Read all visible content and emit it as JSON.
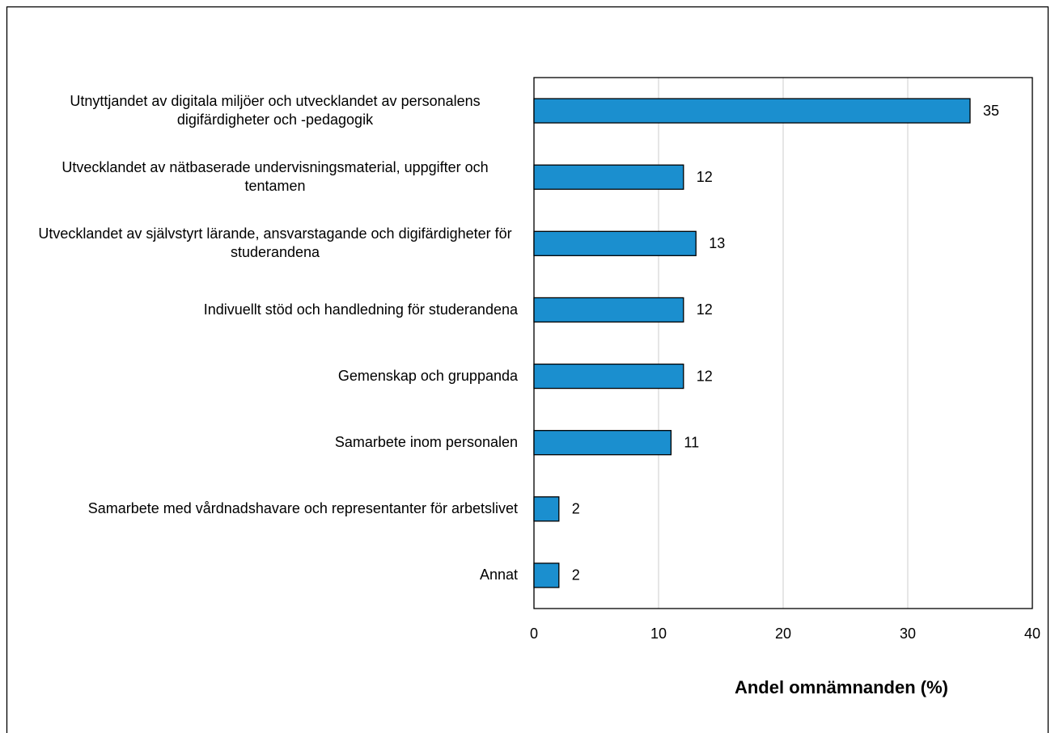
{
  "chart_data": {
    "type": "bar",
    "orientation": "horizontal",
    "categories": [
      "Utnyttjandet av digitala miljöer och utvecklandet av personalens digifärdigheter och -pedagogik",
      "Utvecklandet av nätbaserade undervisningsmaterial, uppgifter och tentamen",
      "Utvecklandet av självstyrt lärande, ansvarstagande och digifärdigheter för studerandena",
      "Indivuellt stöd och handledning för studerandena",
      "Gemenskap och gruppanda",
      "Samarbete inom personalen",
      "Samarbete med vårdnadshavare och representanter för arbetslivet",
      "Annat"
    ],
    "values": [
      35,
      12,
      13,
      12,
      12,
      11,
      2,
      2
    ],
    "color": "#1b8fcf",
    "xlabel": "Andel omnämnanden (%)",
    "xlim": [
      0,
      40
    ],
    "xticks": [
      0,
      10,
      20,
      30,
      40
    ],
    "grid": true
  }
}
